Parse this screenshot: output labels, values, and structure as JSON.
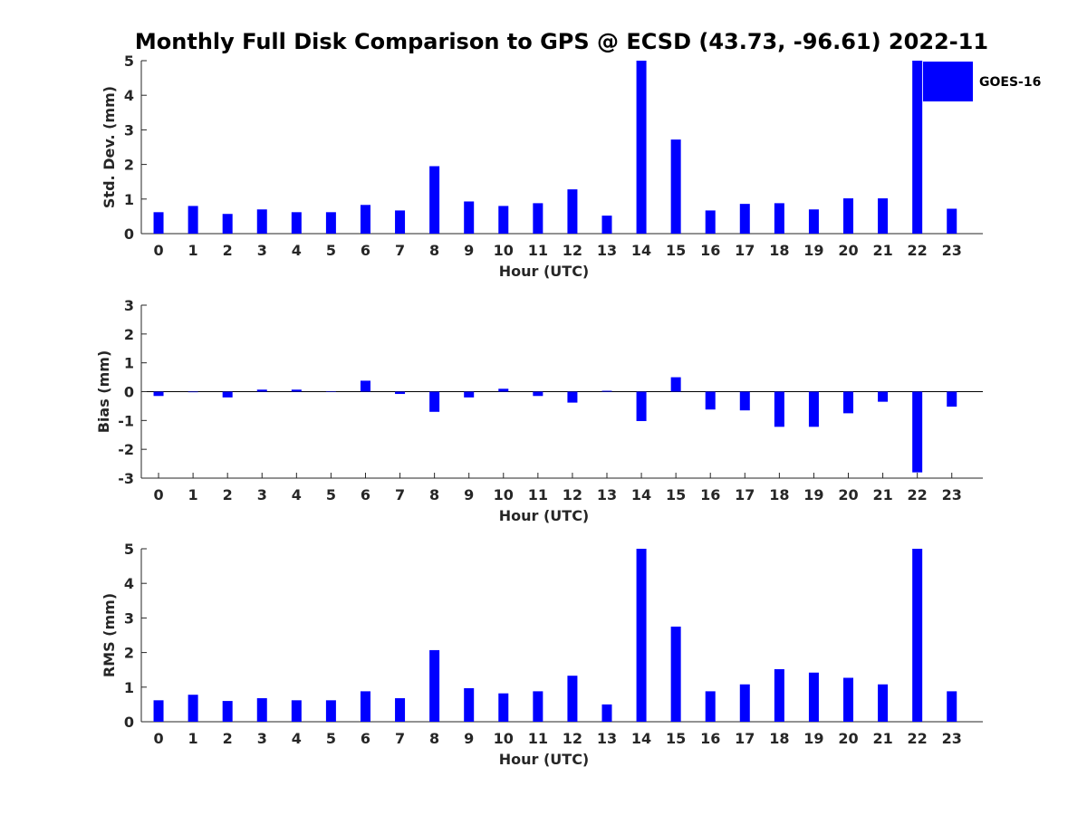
{
  "title": "Monthly Full Disk Comparison to GPS @ ECSD (43.73, -96.61) 2022-11",
  "colors": {
    "bar": "#0000ff",
    "axis": "#262626"
  },
  "legend": {
    "label": "GOES-16",
    "placement": "top-right"
  },
  "chart_data": [
    {
      "type": "bar",
      "xlabel": "Hour (UTC)",
      "ylabel": "Std. Dev. (mm)",
      "ylim": [
        0,
        5
      ],
      "yticks": [
        0,
        1,
        2,
        3,
        4,
        5
      ],
      "categories": [
        0,
        1,
        2,
        3,
        4,
        5,
        6,
        7,
        8,
        9,
        10,
        11,
        12,
        13,
        14,
        15,
        16,
        17,
        18,
        19,
        20,
        21,
        22,
        23
      ],
      "series": [
        {
          "name": "GOES-16",
          "values": [
            0.62,
            0.8,
            0.57,
            0.7,
            0.62,
            0.62,
            0.83,
            0.67,
            1.95,
            0.93,
            0.8,
            0.88,
            1.28,
            0.52,
            5.0,
            2.72,
            0.67,
            0.86,
            0.88,
            0.7,
            1.02,
            1.02,
            5.0,
            0.72
          ]
        }
      ],
      "grid": false
    },
    {
      "type": "bar",
      "xlabel": "Hour (UTC)",
      "ylabel": "Bias (mm)",
      "ylim": [
        -3,
        3
      ],
      "yticks": [
        -3,
        -2,
        -1,
        0,
        1,
        2,
        3
      ],
      "categories": [
        0,
        1,
        2,
        3,
        4,
        5,
        6,
        7,
        8,
        9,
        10,
        11,
        12,
        13,
        14,
        15,
        16,
        17,
        18,
        19,
        20,
        21,
        22,
        23
      ],
      "series": [
        {
          "name": "GOES-16",
          "values": [
            -0.15,
            -0.02,
            -0.2,
            0.07,
            0.07,
            0.0,
            0.38,
            -0.08,
            -0.7,
            -0.2,
            0.1,
            -0.15,
            -0.38,
            0.03,
            -1.02,
            0.5,
            -0.62,
            -0.65,
            -1.22,
            -1.22,
            -0.75,
            -0.35,
            -2.8,
            -0.52
          ]
        }
      ],
      "grid": false
    },
    {
      "type": "bar",
      "xlabel": "Hour (UTC)",
      "ylabel": "RMS (mm)",
      "ylim": [
        0,
        5
      ],
      "yticks": [
        0,
        1,
        2,
        3,
        4,
        5
      ],
      "categories": [
        0,
        1,
        2,
        3,
        4,
        5,
        6,
        7,
        8,
        9,
        10,
        11,
        12,
        13,
        14,
        15,
        16,
        17,
        18,
        19,
        20,
        21,
        22,
        23
      ],
      "series": [
        {
          "name": "GOES-16",
          "values": [
            0.62,
            0.78,
            0.6,
            0.68,
            0.62,
            0.62,
            0.88,
            0.68,
            2.07,
            0.97,
            0.82,
            0.88,
            1.33,
            0.5,
            5.0,
            2.75,
            0.88,
            1.08,
            1.52,
            1.42,
            1.27,
            1.08,
            5.0,
            0.88
          ]
        }
      ],
      "grid": false
    }
  ]
}
